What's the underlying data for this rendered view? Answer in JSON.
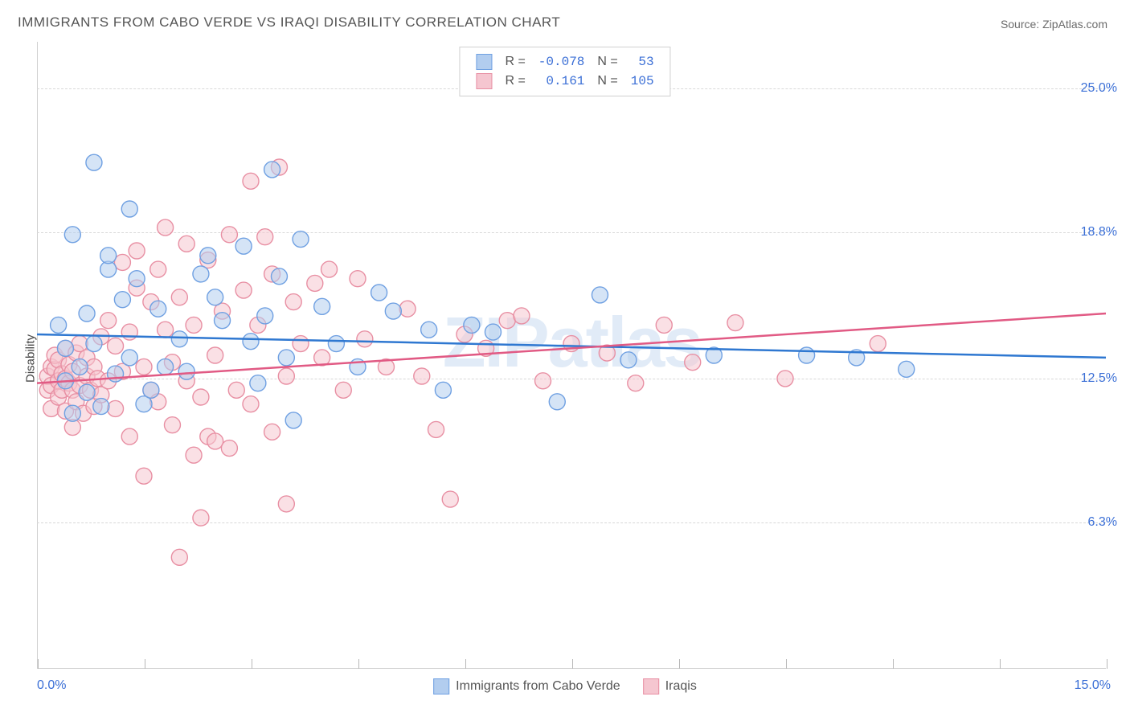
{
  "title": "IMMIGRANTS FROM CABO VERDE VS IRAQI DISABILITY CORRELATION CHART",
  "source_label": "Source:",
  "source_name": "ZipAtlas.com",
  "watermark": "ZIPatlas",
  "chart": {
    "type": "scatter",
    "ylabel": "Disability",
    "xlim": [
      0.0,
      15.0
    ],
    "ylim": [
      0.0,
      27.0
    ],
    "xtick_positions": [
      0,
      1.5,
      3.0,
      4.5,
      6.0,
      7.5,
      9.0,
      10.5,
      12.0,
      13.5,
      15.0
    ],
    "xaxis_min_label": "0.0%",
    "xaxis_max_label": "15.0%",
    "yticks": [
      {
        "v": 6.3,
        "label": "6.3%"
      },
      {
        "v": 12.5,
        "label": "12.5%"
      },
      {
        "v": 18.8,
        "label": "18.8%"
      },
      {
        "v": 25.0,
        "label": "25.0%"
      }
    ],
    "background_color": "#ffffff",
    "grid_color": "#d8d8d8",
    "border_color": "#cfcfcf",
    "marker_radius": 10,
    "marker_opacity": 0.55,
    "line_width": 2.5,
    "series": [
      {
        "name": "Immigrants from Cabo Verde",
        "short": "cabo",
        "color_fill": "#b2cdef",
        "color_stroke": "#6fa0e2",
        "line_color": "#2f78d1",
        "R": "-0.078",
        "N": "53",
        "trend": {
          "y_at_xmin": 14.4,
          "y_at_xmax": 13.4
        },
        "points": [
          [
            0.3,
            14.8
          ],
          [
            0.4,
            12.4
          ],
          [
            0.4,
            13.8
          ],
          [
            0.5,
            11.0
          ],
          [
            0.5,
            18.7
          ],
          [
            0.6,
            13.0
          ],
          [
            0.7,
            11.9
          ],
          [
            0.7,
            15.3
          ],
          [
            0.8,
            21.8
          ],
          [
            0.8,
            14.0
          ],
          [
            0.9,
            11.3
          ],
          [
            1.0,
            17.2
          ],
          [
            1.0,
            17.8
          ],
          [
            1.1,
            12.7
          ],
          [
            1.2,
            15.9
          ],
          [
            1.3,
            19.8
          ],
          [
            1.3,
            13.4
          ],
          [
            1.4,
            16.8
          ],
          [
            1.5,
            11.4
          ],
          [
            1.6,
            12.0
          ],
          [
            1.7,
            15.5
          ],
          [
            1.8,
            13.0
          ],
          [
            2.0,
            14.2
          ],
          [
            2.1,
            12.8
          ],
          [
            2.3,
            17.0
          ],
          [
            2.4,
            17.8
          ],
          [
            2.5,
            16.0
          ],
          [
            2.6,
            15.0
          ],
          [
            2.9,
            18.2
          ],
          [
            3.0,
            14.1
          ],
          [
            3.1,
            12.3
          ],
          [
            3.2,
            15.2
          ],
          [
            3.3,
            21.5
          ],
          [
            3.4,
            16.9
          ],
          [
            3.5,
            13.4
          ],
          [
            3.6,
            10.7
          ],
          [
            3.7,
            18.5
          ],
          [
            4.0,
            15.6
          ],
          [
            4.2,
            14.0
          ],
          [
            4.5,
            13.0
          ],
          [
            4.8,
            16.2
          ],
          [
            5.0,
            15.4
          ],
          [
            5.5,
            14.6
          ],
          [
            5.7,
            12.0
          ],
          [
            6.1,
            14.8
          ],
          [
            6.4,
            14.5
          ],
          [
            7.3,
            11.5
          ],
          [
            7.9,
            16.1
          ],
          [
            8.3,
            13.3
          ],
          [
            9.5,
            13.5
          ],
          [
            10.8,
            13.5
          ],
          [
            11.5,
            13.4
          ],
          [
            12.2,
            12.9
          ]
        ]
      },
      {
        "name": "Iraqis",
        "short": "iraqi",
        "color_fill": "#f5c6d0",
        "color_stroke": "#e88fa3",
        "line_color": "#e15a84",
        "R": "0.161",
        "N": "105",
        "trend": {
          "y_at_xmin": 12.3,
          "y_at_xmax": 15.3
        },
        "points": [
          [
            0.15,
            12.0
          ],
          [
            0.15,
            12.6
          ],
          [
            0.2,
            12.2
          ],
          [
            0.2,
            13.0
          ],
          [
            0.2,
            11.2
          ],
          [
            0.25,
            12.9
          ],
          [
            0.25,
            13.5
          ],
          [
            0.3,
            11.7
          ],
          [
            0.3,
            12.4
          ],
          [
            0.3,
            13.3
          ],
          [
            0.35,
            12.0
          ],
          [
            0.35,
            12.7
          ],
          [
            0.4,
            11.1
          ],
          [
            0.4,
            12.5
          ],
          [
            0.4,
            13.8
          ],
          [
            0.45,
            12.3
          ],
          [
            0.45,
            13.1
          ],
          [
            0.5,
            10.4
          ],
          [
            0.5,
            12.0
          ],
          [
            0.5,
            12.8
          ],
          [
            0.55,
            11.5
          ],
          [
            0.55,
            13.6
          ],
          [
            0.6,
            12.2
          ],
          [
            0.6,
            14.0
          ],
          [
            0.65,
            11.0
          ],
          [
            0.7,
            12.6
          ],
          [
            0.7,
            13.4
          ],
          [
            0.75,
            12.0
          ],
          [
            0.8,
            11.3
          ],
          [
            0.8,
            13.0
          ],
          [
            0.85,
            12.5
          ],
          [
            0.9,
            14.3
          ],
          [
            0.9,
            11.8
          ],
          [
            1.0,
            15.0
          ],
          [
            1.0,
            12.4
          ],
          [
            1.1,
            13.9
          ],
          [
            1.1,
            11.2
          ],
          [
            1.2,
            17.5
          ],
          [
            1.2,
            12.8
          ],
          [
            1.3,
            14.5
          ],
          [
            1.3,
            10.0
          ],
          [
            1.4,
            16.4
          ],
          [
            1.4,
            18.0
          ],
          [
            1.5,
            13.0
          ],
          [
            1.5,
            8.3
          ],
          [
            1.6,
            12.0
          ],
          [
            1.6,
            15.8
          ],
          [
            1.7,
            17.2
          ],
          [
            1.7,
            11.5
          ],
          [
            1.8,
            14.6
          ],
          [
            1.8,
            19.0
          ],
          [
            1.9,
            13.2
          ],
          [
            1.9,
            10.5
          ],
          [
            2.0,
            16.0
          ],
          [
            2.0,
            4.8
          ],
          [
            2.1,
            12.4
          ],
          [
            2.1,
            18.3
          ],
          [
            2.2,
            9.2
          ],
          [
            2.2,
            14.8
          ],
          [
            2.3,
            11.7
          ],
          [
            2.3,
            6.5
          ],
          [
            2.4,
            10.0
          ],
          [
            2.4,
            17.6
          ],
          [
            2.5,
            9.8
          ],
          [
            2.5,
            13.5
          ],
          [
            2.6,
            15.4
          ],
          [
            2.7,
            18.7
          ],
          [
            2.7,
            9.5
          ],
          [
            2.8,
            12.0
          ],
          [
            2.9,
            16.3
          ],
          [
            3.0,
            21.0
          ],
          [
            3.0,
            11.4
          ],
          [
            3.1,
            14.8
          ],
          [
            3.2,
            18.6
          ],
          [
            3.3,
            10.2
          ],
          [
            3.3,
            17.0
          ],
          [
            3.4,
            21.6
          ],
          [
            3.5,
            12.6
          ],
          [
            3.5,
            7.1
          ],
          [
            3.6,
            15.8
          ],
          [
            3.7,
            14.0
          ],
          [
            3.9,
            16.6
          ],
          [
            4.0,
            13.4
          ],
          [
            4.1,
            17.2
          ],
          [
            4.3,
            12.0
          ],
          [
            4.5,
            16.8
          ],
          [
            4.6,
            14.2
          ],
          [
            4.9,
            13.0
          ],
          [
            5.2,
            15.5
          ],
          [
            5.4,
            12.6
          ],
          [
            5.6,
            10.3
          ],
          [
            5.8,
            7.3
          ],
          [
            6.0,
            14.4
          ],
          [
            6.3,
            13.8
          ],
          [
            6.6,
            15.0
          ],
          [
            6.8,
            15.2
          ],
          [
            7.1,
            12.4
          ],
          [
            7.5,
            14.0
          ],
          [
            8.0,
            13.6
          ],
          [
            8.4,
            12.3
          ],
          [
            8.8,
            14.8
          ],
          [
            9.2,
            13.2
          ],
          [
            9.8,
            14.9
          ],
          [
            10.5,
            12.5
          ],
          [
            11.8,
            14.0
          ]
        ]
      }
    ]
  },
  "legend_top_labels": {
    "R": "R =",
    "N": "N ="
  }
}
